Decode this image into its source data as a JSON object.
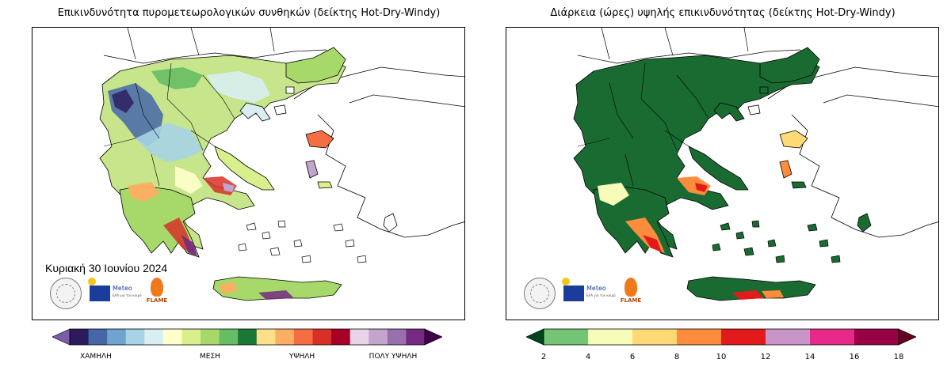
{
  "left_panel": {
    "title": "Επικινδυνότητα πυρομετεωρολογικών συνθηκών (δείκτης Hot-Dry-Windy)",
    "date": "Κυριακή 30 Ιουνίου 2024",
    "meteo_label": "Meteo",
    "meteo_sub": "ΕΑΑ για τον καιρό",
    "flame_label": "FLAME",
    "colorbar": {
      "colors": [
        "#2b1a5e",
        "#4567a8",
        "#6fa3d0",
        "#a6d3e6",
        "#d8eef1",
        "#ffffcc",
        "#d9ef8b",
        "#a6d96a",
        "#66bd63",
        "#1a7837",
        "#fee08b",
        "#fdae61",
        "#f46d43",
        "#d73027",
        "#a50026",
        "#e7d4e8",
        "#c2a5cf",
        "#9970ab",
        "#762a83"
      ],
      "under_color": "#7b5ea7",
      "over_color": "#40004b",
      "labels": [
        "ΧΑΜΗΛΗ",
        "ΜΕΣΗ",
        "ΥΨΗΛΗ",
        "ΠΟΛΥ ΥΨΗΛΗ"
      ]
    }
  },
  "right_panel": {
    "title": "Διάρκεια (ώρες) υψηλής επικινδυνότητας (δείκτης Hot-Dry-Windy)",
    "meteo_label": "Meteo",
    "meteo_sub": "ΕΑΑ για τον καιρό",
    "flame_label": "FLAME",
    "colorbar": {
      "colors": [
        "#74c476",
        "#f7fcb9",
        "#fed976",
        "#fd8d3c",
        "#e31a1c",
        "#c994c7",
        "#e7298a",
        "#980043"
      ],
      "under_color": "#00441b",
      "over_color": "#67001f",
      "ticks": [
        "2",
        "4",
        "6",
        "8",
        "10",
        "12",
        "14",
        "16",
        "18"
      ]
    }
  },
  "colors": {
    "left_land_base": "#c7e58a",
    "right_land_base": "#1a6b32",
    "coast": "#000000"
  }
}
